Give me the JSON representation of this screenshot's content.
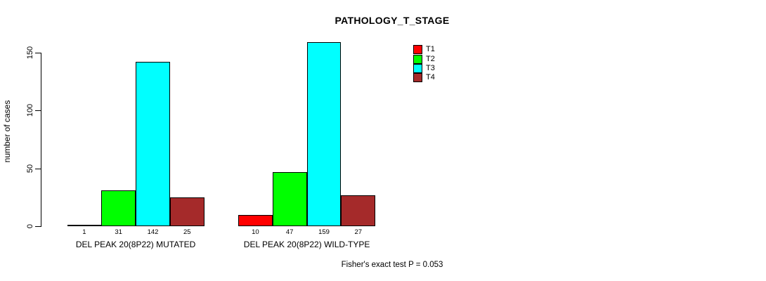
{
  "chart_data": {
    "type": "bar",
    "title": "PATHOLOGY_T_STAGE",
    "ylabel": "number of cases",
    "xlabel": "",
    "ylim": [
      0,
      150
    ],
    "yticks": [
      0,
      50,
      100,
      150
    ],
    "grid": false,
    "legend_position": "top-right",
    "background_color": "#FFFFFF",
    "axis_color": "#000000",
    "categories": [
      "DEL PEAK 20(8P22) MUTATED",
      "DEL PEAK 20(8P22) WILD-TYPE"
    ],
    "series": [
      {
        "name": "T1",
        "color": "#FF0000",
        "values": [
          1,
          10
        ]
      },
      {
        "name": "T2",
        "color": "#00FF00",
        "values": [
          31,
          47
        ]
      },
      {
        "name": "T3",
        "color": "#00FFFF",
        "values": [
          142,
          159
        ]
      },
      {
        "name": "T4",
        "color": "#A52A2A",
        "values": [
          25,
          27
        ]
      }
    ],
    "value_labels_shown": true,
    "annotation": "Fisher's exact test P = 0.053"
  }
}
